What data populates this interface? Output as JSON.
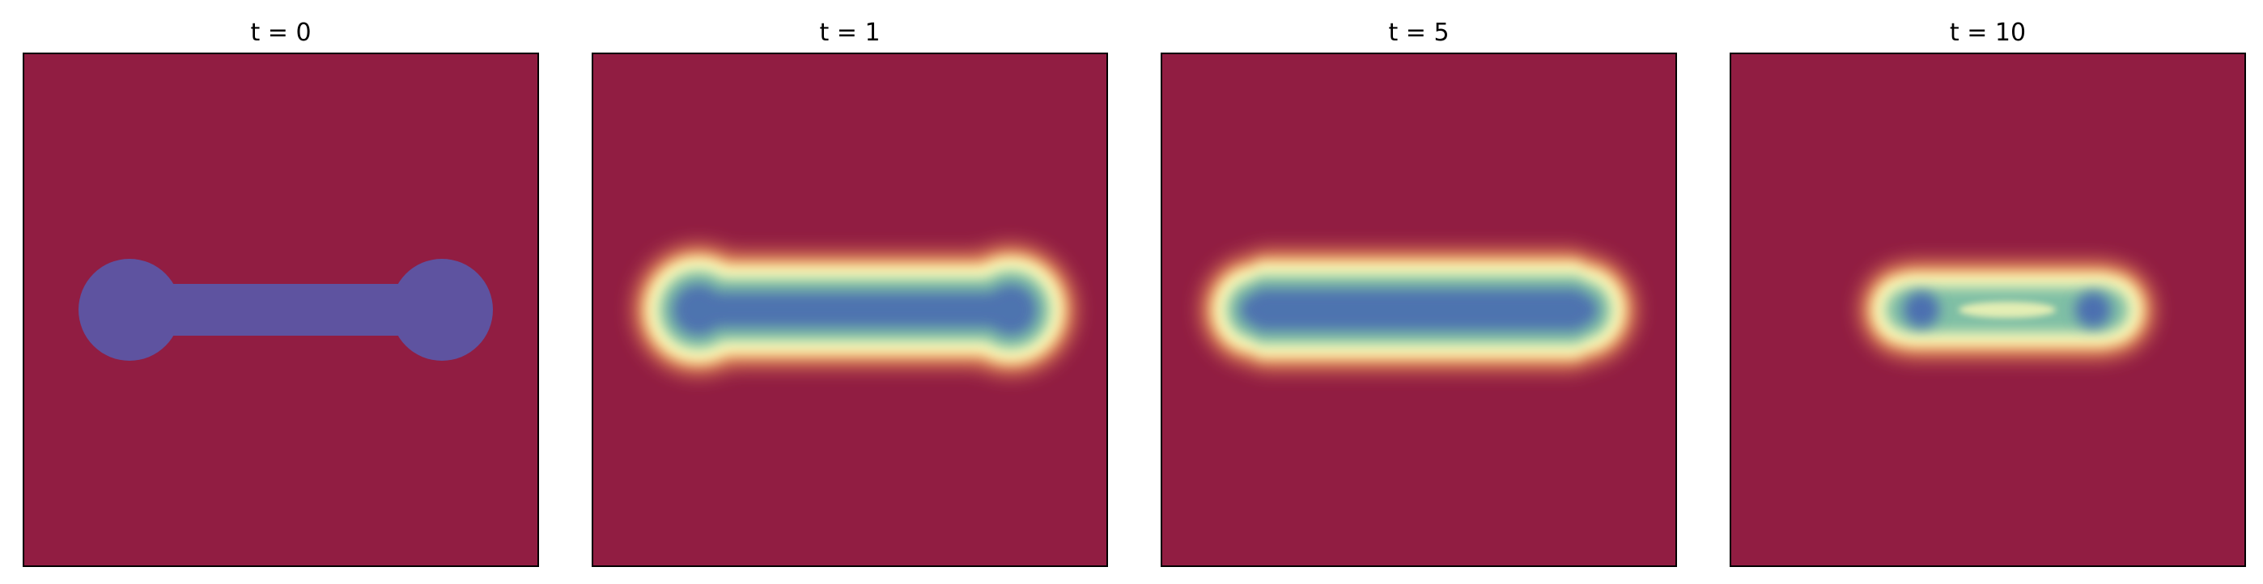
{
  "chart_data": [
    {
      "type": "heatmap",
      "title": "t = 0",
      "shape": "dumbbell",
      "interface": "sharp",
      "tick_labels": "none",
      "colormap": "Spectral"
    },
    {
      "type": "heatmap",
      "title": "t = 1",
      "shape": "dumbbell",
      "interface": "diffuse",
      "tick_labels": "none",
      "colormap": "Spectral"
    },
    {
      "type": "heatmap",
      "title": "t = 5",
      "shape": "dumbbell",
      "interface": "diffuse",
      "tick_labels": "none",
      "colormap": "Spectral"
    },
    {
      "type": "heatmap",
      "title": "t = 10",
      "shape": "dumbbell",
      "interface": "diffuse",
      "tick_labels": "none",
      "colormap": "Spectral"
    }
  ],
  "colors": {
    "background": "#911d42",
    "inside": "#5e53a0",
    "core": "#4b6fb0",
    "mid": "#7fbfa5",
    "ring": "#fdfab8",
    "outer": "#f5a25b"
  }
}
